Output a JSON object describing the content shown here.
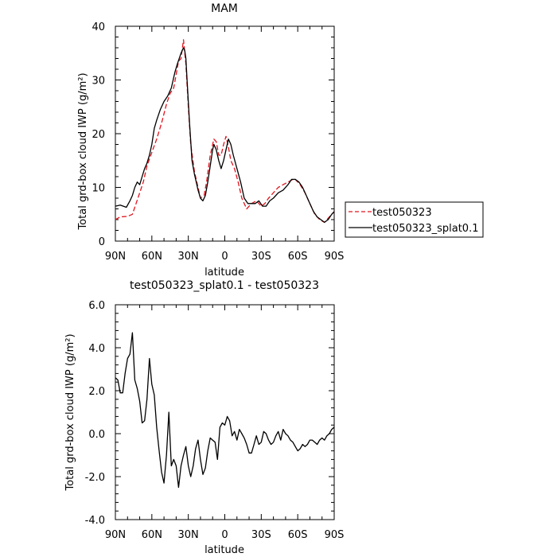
{
  "colors": {
    "red_dashed": "#e0141e",
    "black": "#000000"
  },
  "chart_data": [
    {
      "type": "line",
      "title": "MAM",
      "xlabel": "latitude",
      "ylabel": "Total grd-box cloud IWP (g/m²)",
      "xlim": [
        90,
        -90
      ],
      "ylim": [
        0,
        40
      ],
      "x_ticks": [
        90,
        60,
        30,
        0,
        -30,
        -60,
        -90
      ],
      "x_tick_labels": [
        "90N",
        "60N",
        "30N",
        "0",
        "30S",
        "60S",
        "90S"
      ],
      "y_ticks": [
        0,
        10,
        20,
        30,
        40
      ],
      "y_tick_labels": [
        "0",
        "10",
        "20",
        "30",
        "40"
      ],
      "legend": {
        "placement": "right-outside"
      },
      "series": [
        {
          "name": "test050323",
          "color": "#e0141e",
          "dash": "dashed",
          "x": [
            90,
            86,
            80,
            76,
            73,
            70,
            67,
            64,
            60,
            56,
            52,
            48,
            45,
            42,
            38,
            36,
            34,
            32,
            30,
            28,
            25,
            22,
            20,
            17,
            15,
            12,
            9,
            7,
            5,
            3,
            1,
            -1,
            -3,
            -5,
            -8,
            -11,
            -14,
            -18,
            -22,
            -26,
            -30,
            -33,
            -36,
            -40,
            -44,
            -48,
            -52,
            -56,
            -58,
            -62,
            -66,
            -70,
            -74,
            -78,
            -82,
            -86,
            -90
          ],
          "y": [
            4.0,
            4.5,
            4.6,
            5.0,
            7.0,
            9.0,
            11.0,
            14.0,
            16.5,
            19.0,
            22.0,
            25.5,
            27.5,
            28.5,
            33.5,
            34.0,
            37.5,
            33.0,
            25.0,
            18.0,
            13.0,
            10.0,
            8.0,
            8.5,
            11.0,
            16.0,
            19.0,
            18.5,
            16.0,
            16.0,
            18.0,
            19.5,
            17.5,
            15.0,
            13.5,
            11.0,
            8.0,
            6.0,
            7.0,
            7.5,
            6.5,
            7.0,
            8.0,
            9.0,
            10.0,
            10.5,
            11.0,
            11.5,
            11.5,
            10.5,
            9.0,
            7.0,
            5.0,
            4.0,
            3.5,
            4.5,
            5.5
          ]
        },
        {
          "name": "test050323_splat0.1",
          "color": "#000000",
          "dash": "solid",
          "x": [
            90,
            86,
            81,
            78,
            76,
            74,
            72,
            70,
            68,
            66,
            64,
            62,
            60,
            58,
            56,
            53,
            50,
            47,
            44,
            41,
            39,
            36,
            34,
            33,
            32,
            31,
            29,
            27,
            25,
            22,
            20,
            18,
            16,
            14,
            12,
            10,
            9,
            7,
            5,
            3,
            1,
            -1,
            -3,
            -5,
            -7,
            -10,
            -13,
            -16,
            -19,
            -22,
            -25,
            -28,
            -31,
            -34,
            -37,
            -40,
            -44,
            -48,
            -52,
            -55,
            -58,
            -61,
            -64,
            -67,
            -70,
            -73,
            -76,
            -79,
            -82,
            -85,
            -88,
            -90
          ],
          "y": [
            6.5,
            6.7,
            6.3,
            7.5,
            8.5,
            10.0,
            11.0,
            10.5,
            12.0,
            13.5,
            14.5,
            16.0,
            18.0,
            21.0,
            22.5,
            24.5,
            26.0,
            27.0,
            28.5,
            31.5,
            33.0,
            35.0,
            36.0,
            35.5,
            34.0,
            30.0,
            22.0,
            15.0,
            12.5,
            9.5,
            8.0,
            7.5,
            8.5,
            11.0,
            14.0,
            17.0,
            18.0,
            17.0,
            15.0,
            13.5,
            15.0,
            17.0,
            19.0,
            18.0,
            16.0,
            13.5,
            11.0,
            8.0,
            7.0,
            7.0,
            7.0,
            7.5,
            6.5,
            6.5,
            7.5,
            8.0,
            9.0,
            9.5,
            10.5,
            11.5,
            11.5,
            11.0,
            10.0,
            8.5,
            7.0,
            5.5,
            4.5,
            4.0,
            3.5,
            4.0,
            5.0,
            5.5
          ]
        }
      ]
    },
    {
      "type": "line",
      "title": "test050323_splat0.1 - test050323",
      "xlabel": "latitude",
      "ylabel": "Total grd-box cloud IWP (g/m²)",
      "xlim": [
        90,
        -90
      ],
      "ylim": [
        -4.0,
        6.0
      ],
      "x_ticks": [
        90,
        60,
        30,
        0,
        -30,
        -60,
        -90
      ],
      "x_tick_labels": [
        "90N",
        "60N",
        "30N",
        "0",
        "30S",
        "60S",
        "90S"
      ],
      "y_ticks": [
        -4,
        -2,
        0,
        2,
        4,
        6
      ],
      "y_tick_labels": [
        "-4.0",
        "-2.0",
        "0.0",
        "2.0",
        "4.0",
        "6.0"
      ],
      "series": [
        {
          "color": "#000000",
          "dash": "solid",
          "x": [
            90,
            88,
            86,
            84,
            82,
            80,
            78,
            76,
            74,
            72,
            70,
            68,
            66,
            64,
            62,
            60,
            58,
            56,
            54,
            52,
            50,
            48,
            46,
            44,
            42,
            40,
            38,
            36,
            34,
            32,
            30,
            28,
            26,
            24,
            22,
            20,
            18,
            16,
            14,
            12,
            10,
            8,
            6,
            4,
            2,
            0,
            -2,
            -4,
            -6,
            -8,
            -10,
            -12,
            -14,
            -16,
            -18,
            -20,
            -22,
            -24,
            -26,
            -28,
            -30,
            -32,
            -34,
            -36,
            -38,
            -40,
            -42,
            -44,
            -46,
            -48,
            -50,
            -52,
            -54,
            -56,
            -58,
            -60,
            -62,
            -64,
            -66,
            -68,
            -70,
            -72,
            -74,
            -76,
            -78,
            -80,
            -82,
            -84,
            -86,
            -88,
            -90
          ],
          "y": [
            2.6,
            2.5,
            1.9,
            1.9,
            2.8,
            3.5,
            3.7,
            4.7,
            2.5,
            2.1,
            1.5,
            0.5,
            0.6,
            1.6,
            3.5,
            2.3,
            1.8,
            0.3,
            -0.8,
            -1.8,
            -2.3,
            -1.0,
            1.0,
            -1.5,
            -1.2,
            -1.5,
            -2.5,
            -1.5,
            -1.0,
            -0.6,
            -1.5,
            -2.0,
            -1.5,
            -0.7,
            -0.3,
            -1.2,
            -1.9,
            -1.6,
            -0.8,
            -0.2,
            -0.3,
            -0.4,
            -1.2,
            0.3,
            0.5,
            0.4,
            0.8,
            0.6,
            -0.1,
            0.1,
            -0.3,
            0.2,
            0.0,
            -0.2,
            -0.5,
            -0.9,
            -0.9,
            -0.5,
            -0.1,
            -0.5,
            -0.4,
            0.1,
            0.0,
            -0.3,
            -0.5,
            -0.4,
            -0.1,
            0.1,
            -0.3,
            0.2,
            0.0,
            -0.1,
            -0.3,
            -0.4,
            -0.6,
            -0.8,
            -0.7,
            -0.5,
            -0.6,
            -0.5,
            -0.3,
            -0.3,
            -0.4,
            -0.5,
            -0.3,
            -0.2,
            -0.3,
            -0.1,
            0.0,
            0.2,
            0.3
          ]
        }
      ]
    }
  ]
}
